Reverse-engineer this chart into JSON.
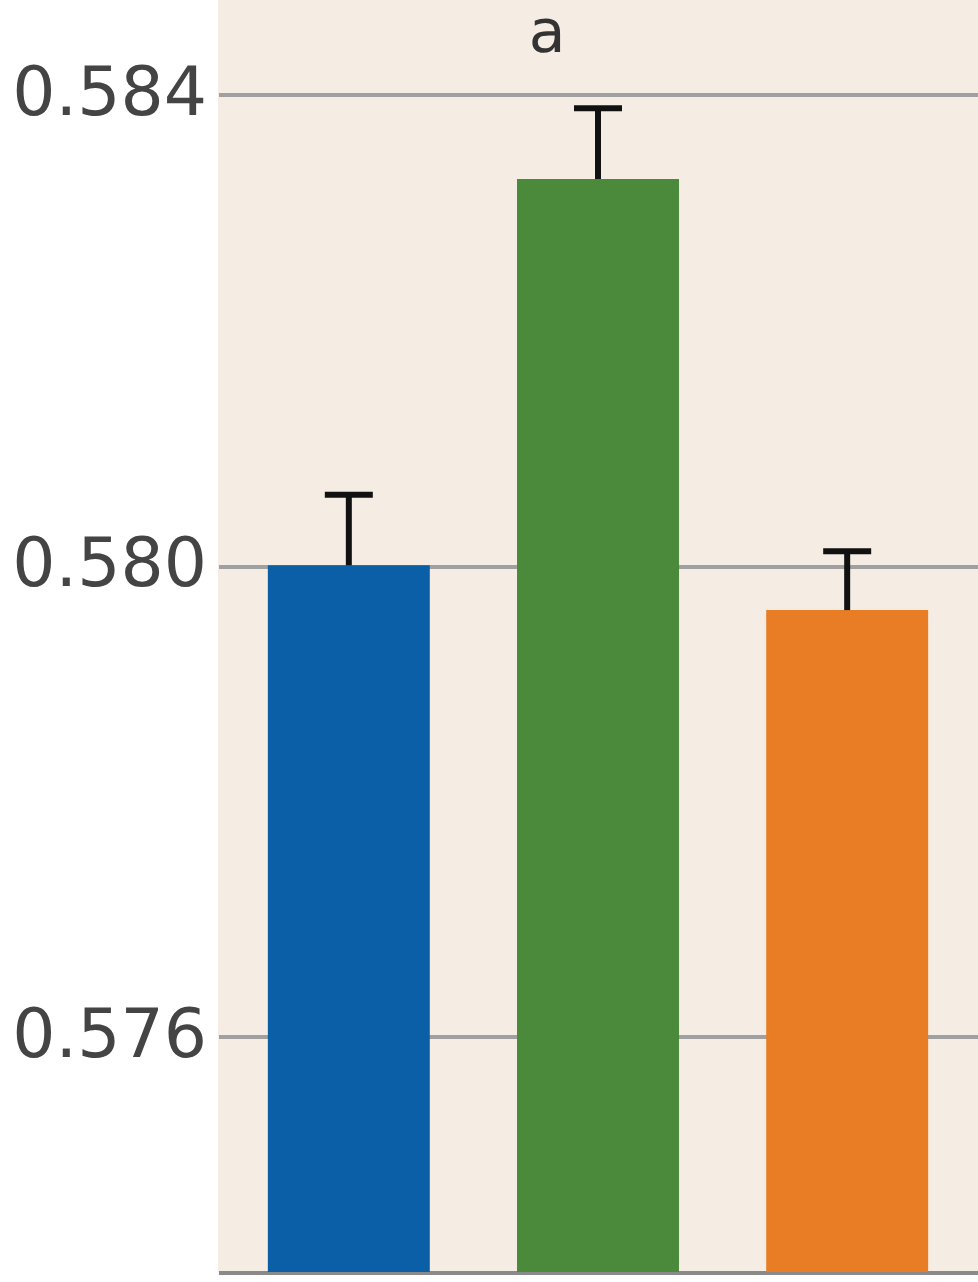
{
  "chart_data": {
    "type": "bar",
    "categories": [
      null,
      null,
      null
    ],
    "values": [
      0.58,
      0.58328,
      0.57962
    ],
    "colors": [
      "#0a5fa6",
      "#4a8a3a",
      "#e87d25"
    ],
    "errors": [
      0.0006,
      0.0006,
      0.0005
    ],
    "annotations": [
      "a"
    ],
    "ylim": [
      0.574,
      0.5848
    ],
    "yticks": [
      {
        "value": 0.576,
        "label": "0.576"
      },
      {
        "value": 0.58,
        "label": "0.580"
      },
      {
        "value": 0.584,
        "label": "0.584"
      }
    ],
    "grid": "y",
    "tick_labels": "y"
  }
}
